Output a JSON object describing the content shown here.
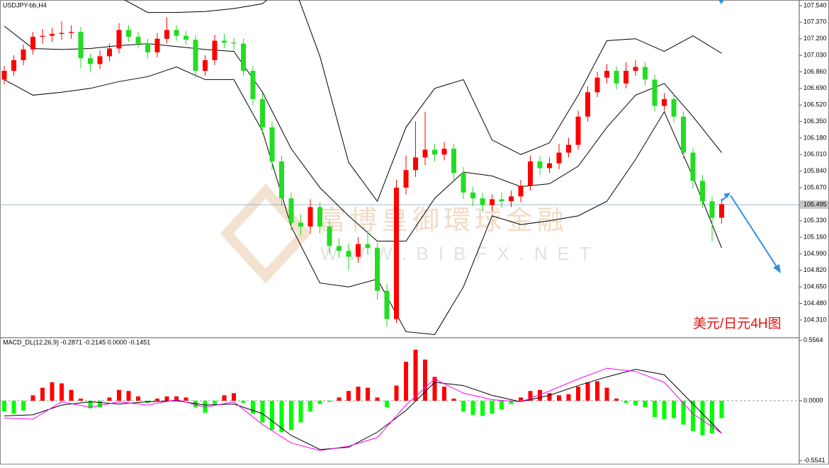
{
  "chart_data": [
    {
      "type": "candlestick",
      "title": "USDJPY-bb,H4",
      "annotation": "美元/日元4H图",
      "watermark": [
        "富博皇御環球金融",
        "WWW.BIBFX.NET"
      ],
      "ylim": [
        104.135,
        107.598
      ],
      "yticks": [
        {
          "value": 107.54,
          "label": "107.540"
        },
        {
          "value": 107.37,
          "label": "107.370"
        },
        {
          "value": 107.2,
          "label": "107.200"
        },
        {
          "value": 107.03,
          "label": "107.030"
        },
        {
          "value": 106.86,
          "label": "106.860"
        },
        {
          "value": 106.69,
          "label": "106.690"
        },
        {
          "value": 106.52,
          "label": "106.520"
        },
        {
          "value": 106.35,
          "label": "106.350"
        },
        {
          "value": 106.18,
          "label": "106.180"
        },
        {
          "value": 106.01,
          "label": "106.010"
        },
        {
          "value": 105.84,
          "label": "105.840"
        },
        {
          "value": 105.67,
          "label": "105.670"
        },
        {
          "value": 105.33,
          "label": "105.330"
        },
        {
          "value": 105.16,
          "label": "105.160"
        },
        {
          "value": 104.99,
          "label": "104.990"
        },
        {
          "value": 104.82,
          "label": "104.820"
        },
        {
          "value": 104.65,
          "label": "104.650"
        },
        {
          "value": 104.48,
          "label": "104.480"
        },
        {
          "value": 104.31,
          "label": "104.310"
        }
      ],
      "current_price": 105.495,
      "candles": {
        "up_color": "#ff0000",
        "down_color": "#22dd22",
        "open": [
          106.78,
          106.87,
          106.98,
          107.09,
          107.22,
          107.23,
          107.25,
          107.26,
          107.27,
          107.0,
          106.94,
          107.02,
          107.1,
          107.29,
          107.22,
          107.15,
          107.06,
          107.2,
          107.29,
          107.23,
          107.19,
          106.87,
          106.98,
          107.18,
          107.16,
          107.15,
          106.87,
          106.58,
          106.29,
          105.94,
          105.56,
          105.31,
          105.27,
          105.47,
          105.27,
          105.07,
          105.02,
          104.96,
          105.09,
          105.05,
          104.61,
          104.32,
          105.67,
          105.85,
          105.98,
          106.06,
          106.01,
          106.07,
          105.82,
          105.62,
          105.56,
          105.49,
          105.55,
          105.53,
          105.58,
          105.69,
          105.94,
          105.87,
          105.92,
          106.03,
          106.11,
          106.4,
          106.65,
          106.8,
          106.87,
          106.74,
          106.87,
          106.91,
          106.78,
          106.51,
          106.58,
          106.4,
          106.03,
          105.74,
          105.53,
          105.36
        ],
        "high": [
          106.92,
          107.03,
          107.14,
          107.27,
          107.3,
          107.31,
          107.38,
          107.34,
          107.32,
          107.05,
          107.08,
          107.15,
          107.36,
          107.34,
          107.27,
          107.2,
          107.26,
          107.42,
          107.34,
          107.28,
          107.24,
          107.03,
          107.24,
          107.25,
          107.21,
          107.2,
          106.92,
          106.64,
          106.35,
          106.0,
          105.62,
          105.4,
          105.55,
          105.52,
          105.33,
          105.15,
          105.1,
          105.16,
          105.22,
          105.1,
          104.68,
          105.75,
          106.0,
          106.35,
          106.45,
          106.12,
          106.14,
          106.12,
          105.88,
          105.68,
          105.62,
          105.6,
          105.62,
          105.64,
          105.75,
          106.0,
          106.0,
          105.98,
          106.12,
          106.18,
          106.46,
          106.71,
          106.86,
          106.94,
          106.92,
          106.96,
          106.98,
          106.96,
          106.83,
          106.64,
          106.63,
          106.45,
          106.08,
          105.8,
          105.58,
          105.56
        ],
        "low": [
          106.73,
          106.82,
          106.93,
          107.04,
          107.15,
          107.17,
          107.19,
          107.2,
          106.9,
          106.86,
          106.89,
          106.97,
          107.05,
          107.17,
          107.1,
          107.0,
          107.01,
          107.15,
          107.18,
          107.14,
          106.8,
          106.82,
          106.93,
          107.1,
          107.08,
          106.82,
          106.52,
          106.22,
          105.85,
          105.48,
          105.23,
          105.18,
          105.2,
          105.2,
          104.99,
          104.95,
          104.82,
          104.9,
          104.98,
          104.52,
          104.24,
          104.28,
          105.6,
          105.78,
          105.9,
          105.94,
          105.95,
          105.75,
          105.55,
          105.48,
          105.42,
          105.43,
          105.46,
          105.47,
          105.52,
          105.64,
          105.8,
          105.82,
          105.86,
          105.98,
          106.06,
          106.35,
          106.6,
          106.74,
          106.68,
          106.69,
          106.82,
          106.72,
          106.45,
          106.46,
          106.34,
          105.97,
          105.66,
          105.46,
          105.12,
          105.3
        ],
        "close": [
          106.87,
          106.98,
          107.09,
          107.22,
          107.23,
          107.25,
          107.26,
          107.27,
          107.0,
          106.94,
          107.02,
          107.1,
          107.29,
          107.22,
          107.15,
          107.06,
          107.2,
          107.29,
          107.23,
          107.19,
          106.87,
          106.98,
          107.18,
          107.16,
          107.15,
          106.87,
          106.58,
          106.29,
          105.94,
          105.56,
          105.31,
          105.27,
          105.47,
          105.27,
          105.07,
          105.02,
          104.96,
          105.09,
          105.05,
          104.61,
          104.32,
          105.67,
          105.85,
          105.98,
          106.06,
          106.01,
          106.07,
          105.82,
          105.62,
          105.56,
          105.49,
          105.55,
          105.53,
          105.58,
          105.69,
          105.94,
          105.87,
          105.92,
          106.03,
          106.11,
          106.4,
          106.65,
          106.8,
          106.87,
          106.74,
          106.87,
          106.91,
          106.78,
          106.51,
          106.58,
          106.4,
          106.03,
          105.74,
          105.53,
          105.36,
          105.5
        ]
      },
      "bands": {
        "color": "#000000",
        "x": [
          0,
          3,
          6,
          9,
          12,
          15,
          18,
          21,
          24,
          27,
          30,
          33,
          36,
          39,
          42,
          45,
          48,
          51,
          54,
          57,
          60,
          63,
          66,
          69,
          72,
          75
        ],
        "upper": [
          107.67,
          107.71,
          107.74,
          107.71,
          107.63,
          107.47,
          107.47,
          107.48,
          107.51,
          107.56,
          107.82,
          107.02,
          105.93,
          105.53,
          106.29,
          106.69,
          106.78,
          106.16,
          106.01,
          106.13,
          106.62,
          107.18,
          107.2,
          107.07,
          107.23,
          107.05
        ],
        "middle": [
          107.33,
          107.1,
          107.09,
          107.1,
          107.13,
          107.15,
          107.12,
          107.09,
          107.07,
          106.65,
          106.07,
          105.67,
          105.38,
          105.12,
          105.12,
          105.56,
          105.83,
          105.79,
          105.68,
          105.71,
          105.89,
          106.29,
          106.62,
          106.74,
          106.4,
          106.03
        ],
        "lower": [
          106.78,
          106.62,
          106.65,
          106.69,
          106.76,
          106.81,
          106.91,
          106.78,
          106.78,
          106.25,
          105.27,
          104.69,
          104.65,
          104.73,
          104.19,
          104.16,
          104.65,
          105.38,
          105.29,
          105.33,
          105.38,
          105.53,
          105.96,
          106.45,
          105.78,
          105.05
        ]
      }
    },
    {
      "type": "macd",
      "label": "MACD_DL(12,26,9) -0.2871 -0.2145 0.0000 -0.1451",
      "ylim": [
        -0.575,
        0.575
      ],
      "yticks": [
        0.5564,
        {
          "value": 0,
          "label": "0.0000"
        },
        -0.5541
      ],
      "histogram": {
        "pos_color": "#ff0000",
        "neg_color": "#00ff00",
        "values": [
          -0.1,
          -0.12,
          -0.09,
          0.05,
          0.12,
          0.17,
          0.16,
          0.1,
          0.02,
          -0.07,
          -0.06,
          0.03,
          0.1,
          0.09,
          0.04,
          -0.02,
          0.02,
          0.04,
          0.04,
          0.03,
          -0.06,
          -0.11,
          -0.03,
          0.05,
          0.07,
          -0.02,
          -0.12,
          -0.2,
          -0.27,
          -0.29,
          -0.27,
          -0.2,
          -0.1,
          -0.03,
          -0.01,
          0.03,
          0.09,
          0.13,
          0.12,
          0.03,
          -0.06,
          0.14,
          0.36,
          0.47,
          0.38,
          0.22,
          0.13,
          0.02,
          -0.1,
          -0.13,
          -0.14,
          -0.12,
          -0.08,
          -0.03,
          0.03,
          0.09,
          0.1,
          0.07,
          0.05,
          0.06,
          0.13,
          0.17,
          0.18,
          0.12,
          0.02,
          -0.02,
          -0.04,
          -0.06,
          -0.15,
          -0.17,
          -0.16,
          -0.22,
          -0.28,
          -0.32,
          -0.3,
          -0.16
        ]
      },
      "lines": [
        {
          "color": "#000000",
          "x": [
            0,
            3,
            6,
            9,
            12,
            15,
            18,
            21,
            24,
            27,
            30,
            33,
            36,
            39,
            42,
            45,
            48,
            51,
            54,
            57,
            60,
            63,
            66,
            69,
            72,
            75
          ],
          "values": [
            -0.14,
            -0.13,
            -0.04,
            -0.01,
            -0.03,
            -0.01,
            0.0,
            -0.04,
            -0.03,
            -0.12,
            -0.32,
            -0.45,
            -0.43,
            -0.29,
            -0.09,
            0.17,
            0.14,
            0.05,
            -0.01,
            0.05,
            0.14,
            0.22,
            0.29,
            0.24,
            -0.03,
            -0.3
          ]
        },
        {
          "color": "#ff00ff",
          "x": [
            0,
            3,
            6,
            9,
            12,
            15,
            18,
            21,
            24,
            27,
            30,
            33,
            36,
            39,
            42,
            45,
            48,
            51,
            54,
            57,
            60,
            63,
            66,
            69,
            72,
            75
          ],
          "values": [
            -0.16,
            -0.17,
            -0.01,
            -0.06,
            -0.01,
            -0.04,
            0.01,
            -0.06,
            -0.01,
            -0.22,
            -0.39,
            -0.46,
            -0.42,
            -0.34,
            -0.04,
            0.2,
            0.07,
            0.01,
            -0.01,
            0.09,
            0.2,
            0.3,
            0.27,
            0.17,
            -0.12,
            -0.3
          ]
        }
      ]
    }
  ]
}
